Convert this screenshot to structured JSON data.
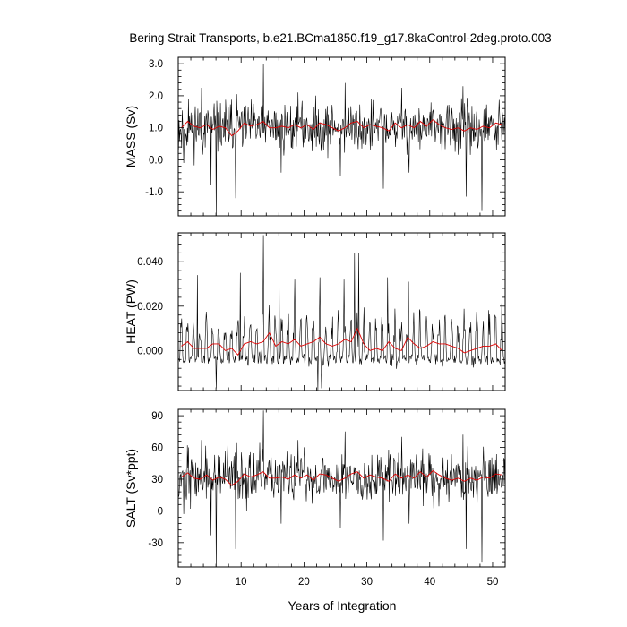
{
  "figure": {
    "title": "Bering Strait Transports, b.e21.BCma1850.f19_g17.8kaControl-2deg.proto.003",
    "xlabel": "Years of Integration"
  },
  "colors": {
    "raw_line": "#000000",
    "smoothed_line": "#e00000",
    "frame": "#000000",
    "background": "#ffffff"
  },
  "chart_data": [
    {
      "type": "line",
      "panel": "mass",
      "ylabel": "MASS (Sv)",
      "xlim": [
        0,
        52
      ],
      "ylim": [
        -1.75,
        3.2
      ],
      "yticks": [
        3.0,
        2.0,
        1.0,
        0.0,
        -1.0
      ],
      "ytick_labels": [
        "3.0",
        "2.0",
        "1.0",
        "0.0",
        "-1.0"
      ],
      "xticks": [
        0,
        10,
        20,
        30,
        40,
        50
      ],
      "xtick_labels": [],
      "series": [
        {
          "style": "monthly",
          "seed": 11,
          "mean": 1.0,
          "amplitude": 0.55,
          "spikes_up": [
            [
              1.6,
              1.9
            ],
            [
              3.7,
              2.25
            ],
            [
              6.0,
              2.2
            ],
            [
              9.3,
              2.05
            ],
            [
              13.5,
              3.0
            ],
            [
              19.0,
              2.1
            ],
            [
              26.5,
              2.4
            ],
            [
              35.5,
              2.25
            ],
            [
              45.3,
              2.3
            ]
          ],
          "spikes_down": [
            [
              0.9,
              -0.1
            ],
            [
              5.2,
              -0.8
            ],
            [
              6.0,
              -1.75
            ],
            [
              9.1,
              -1.2
            ],
            [
              16.4,
              -0.4
            ],
            [
              25.8,
              -0.5
            ],
            [
              32.6,
              -0.9
            ],
            [
              36.7,
              -0.4
            ],
            [
              45.8,
              -1.15
            ],
            [
              48.3,
              -1.6
            ]
          ]
        },
        {
          "style": "annual",
          "x": [
            0.5,
            1.5,
            2.5,
            3.5,
            4.5,
            5.5,
            6.5,
            7.5,
            8.5,
            9.5,
            10.5,
            11.5,
            12.5,
            13.5,
            14.5,
            15.5,
            16.5,
            17.5,
            18.5,
            19.5,
            20.5,
            21.5,
            22.5,
            23.5,
            24.5,
            25.5,
            26.5,
            27.5,
            28.5,
            29.5,
            30.5,
            31.5,
            32.5,
            33.5,
            34.5,
            35.5,
            36.5,
            37.5,
            38.5,
            39.5,
            40.5,
            41.5,
            42.5,
            43.5,
            44.5,
            45.5,
            46.5,
            47.5,
            48.5,
            49.5,
            50.5,
            51.5
          ],
          "values": [
            1.0,
            1.2,
            1.05,
            1.0,
            1.1,
            0.95,
            1.05,
            1.0,
            0.75,
            0.9,
            1.15,
            1.05,
            1.1,
            1.2,
            1.0,
            1.0,
            1.05,
            1.0,
            1.1,
            1.0,
            1.1,
            0.95,
            1.15,
            1.1,
            1.0,
            0.9,
            1.0,
            1.15,
            1.2,
            1.0,
            1.1,
            1.05,
            1.0,
            0.9,
            1.15,
            1.0,
            1.1,
            1.0,
            1.2,
            1.05,
            1.25,
            1.1,
            1.0,
            0.95,
            1.0,
            0.9,
            1.0,
            0.95,
            1.05,
            1.0,
            1.15,
            1.1
          ]
        }
      ]
    },
    {
      "type": "line",
      "panel": "heat",
      "ylabel": "HEAT (PW)",
      "xlim": [
        0,
        52
      ],
      "ylim": [
        -0.018,
        0.053
      ],
      "yticks": [
        0.04,
        0.02,
        0.0
      ],
      "ytick_labels": [
        "0.040",
        "0.020",
        "0.000"
      ],
      "xticks": [
        0,
        10,
        20,
        30,
        40,
        50
      ],
      "xtick_labels": [],
      "series": [
        {
          "style": "seasonal",
          "seed": 23,
          "base": -0.004,
          "amplitude": 0.017,
          "spikes_up": [
            [
              3.0,
              0.034
            ],
            [
              9.9,
              0.035
            ],
            [
              13.5,
              0.052
            ],
            [
              16.0,
              0.035
            ],
            [
              18.5,
              0.032
            ],
            [
              22.5,
              0.033
            ],
            [
              26.4,
              0.032
            ],
            [
              28.0,
              0.044
            ],
            [
              28.7,
              0.044
            ],
            [
              33.3,
              0.033
            ],
            [
              36.6,
              0.031
            ]
          ],
          "spikes_down": [
            [
              6.0,
              -0.017
            ],
            [
              22.2,
              -0.018
            ],
            [
              22.8,
              -0.017
            ]
          ]
        },
        {
          "style": "annual",
          "x": [
            0.5,
            1.5,
            2.5,
            3.5,
            4.5,
            5.5,
            6.5,
            7.5,
            8.5,
            9.5,
            10.5,
            11.5,
            12.5,
            13.5,
            14.5,
            15.5,
            16.5,
            17.5,
            18.5,
            19.5,
            20.5,
            21.5,
            22.5,
            23.5,
            24.5,
            25.5,
            26.5,
            27.5,
            28.5,
            29.5,
            30.5,
            31.5,
            32.5,
            33.5,
            34.5,
            35.5,
            36.5,
            37.5,
            38.5,
            39.5,
            40.5,
            41.5,
            42.5,
            43.5,
            44.5,
            45.5,
            46.5,
            47.5,
            48.5,
            49.5,
            50.5,
            51.5
          ],
          "values": [
            0.002,
            0.004,
            0.001,
            0.001,
            0.001,
            0.003,
            0.003,
            0.0,
            0.001,
            -0.002,
            0.003,
            0.004,
            0.003,
            0.004,
            0.008,
            0.002,
            0.004,
            0.003,
            0.005,
            0.002,
            0.003,
            0.004,
            0.006,
            0.003,
            0.002,
            0.003,
            0.005,
            0.004,
            0.01,
            0.003,
            0.0,
            0.001,
            0.0,
            0.004,
            0.001,
            0.0,
            0.006,
            0.003,
            0.001,
            0.002,
            0.004,
            0.003,
            0.003,
            0.002,
            0.001,
            -0.001,
            0.0,
            0.001,
            0.002,
            0.002,
            0.003,
            0.0
          ]
        }
      ]
    },
    {
      "type": "line",
      "panel": "salt",
      "ylabel": "SALT (Sv*ppt)",
      "xlim": [
        0,
        52
      ],
      "ylim": [
        -53,
        96
      ],
      "yticks": [
        90,
        60,
        30,
        0,
        -30
      ],
      "ytick_labels": [
        "90",
        "60",
        "30",
        "0",
        "-30"
      ],
      "xticks": [
        0,
        10,
        20,
        30,
        40,
        50
      ],
      "xtick_labels": [
        "0",
        "10",
        "20",
        "30",
        "40",
        "50"
      ],
      "series": [
        {
          "style": "monthly",
          "seed": 37,
          "mean": 32.0,
          "amplitude": 17.0,
          "spikes_up": [
            [
              1.6,
              60
            ],
            [
              3.7,
              67
            ],
            [
              6.0,
              70
            ],
            [
              9.3,
              64
            ],
            [
              13.5,
              95
            ],
            [
              19.0,
              67
            ],
            [
              26.5,
              75
            ],
            [
              35.5,
              70
            ],
            [
              45.3,
              72
            ]
          ],
          "spikes_down": [
            [
              0.9,
              -3
            ],
            [
              5.2,
              -23
            ],
            [
              6.0,
              -53
            ],
            [
              9.1,
              -36
            ],
            [
              16.4,
              -12
            ],
            [
              25.8,
              -16
            ],
            [
              32.6,
              -28
            ],
            [
              36.7,
              -12
            ],
            [
              45.8,
              -36
            ],
            [
              48.3,
              -48
            ]
          ]
        },
        {
          "style": "annual",
          "x": [
            0.5,
            1.5,
            2.5,
            3.5,
            4.5,
            5.5,
            6.5,
            7.5,
            8.5,
            9.5,
            10.5,
            11.5,
            12.5,
            13.5,
            14.5,
            15.5,
            16.5,
            17.5,
            18.5,
            19.5,
            20.5,
            21.5,
            22.5,
            23.5,
            24.5,
            25.5,
            26.5,
            27.5,
            28.5,
            29.5,
            30.5,
            31.5,
            32.5,
            33.5,
            34.5,
            35.5,
            36.5,
            37.5,
            38.5,
            39.5,
            40.5,
            41.5,
            42.5,
            43.5,
            44.5,
            45.5,
            46.5,
            47.5,
            48.5,
            49.5,
            50.5,
            51.5
          ],
          "values": [
            32,
            36,
            31,
            30,
            34,
            29,
            32,
            30,
            24,
            28,
            35,
            32,
            34,
            37,
            31,
            31,
            32,
            30,
            34,
            31,
            34,
            29,
            35,
            34,
            31,
            28,
            31,
            35,
            37,
            31,
            34,
            32,
            31,
            28,
            35,
            31,
            34,
            31,
            37,
            32,
            38,
            34,
            31,
            29,
            31,
            28,
            31,
            29,
            32,
            31,
            35,
            34
          ]
        }
      ]
    }
  ]
}
